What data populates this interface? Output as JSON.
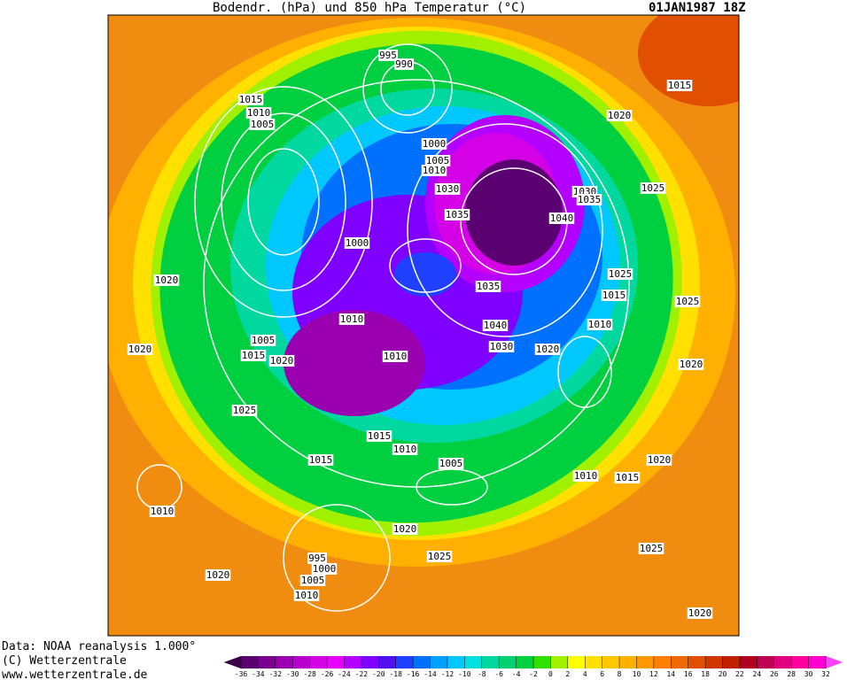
{
  "header": {
    "title": "Bodendr. (hPa) und 850 hPa Temperatur (°C)",
    "date": "01JAN1987 18Z"
  },
  "footer": [
    "Data: NOAA reanalysis 1.000°",
    "(C) Wetterzentrale",
    "www.wetterzentrale.de"
  ],
  "isobar_labels": [
    "1015",
    "1010",
    "1005",
    "995",
    "990",
    "1015",
    "1020",
    "1000",
    "1005",
    "1010",
    "1030",
    "1035",
    "1030",
    "1035",
    "1040",
    "1025",
    "1000",
    "1020",
    "1025",
    "1015",
    "1035",
    "1025",
    "1010",
    "1040",
    "1030",
    "1020",
    "1010",
    "1020",
    "1005",
    "1015",
    "1020",
    "1010",
    "1020",
    "1025",
    "1015",
    "1010",
    "1015",
    "1005",
    "1020",
    "1010",
    "1015",
    "1010",
    "1020",
    "1025",
    "1025",
    "995",
    "1000",
    "1005",
    "1010",
    "1020",
    "1020"
  ],
  "colorbar": {
    "ticks": [
      -36,
      -34,
      -32,
      -30,
      -28,
      -26,
      -24,
      -22,
      -20,
      -18,
      -16,
      -14,
      -12,
      -10,
      -8,
      -6,
      -4,
      -2,
      0,
      2,
      4,
      6,
      8,
      10,
      12,
      14,
      16,
      18,
      20,
      22,
      24,
      26,
      28,
      30,
      32
    ],
    "colors": [
      "#3a0048",
      "#5a0070",
      "#7a0090",
      "#9a00b0",
      "#b800cc",
      "#d400e6",
      "#e800ff",
      "#b400ff",
      "#8000ff",
      "#5010f0",
      "#2040ff",
      "#0070ff",
      "#00a0ff",
      "#00c8ff",
      "#00e0e0",
      "#00d8a0",
      "#00d070",
      "#00d040",
      "#30e000",
      "#a0f000",
      "#ffff00",
      "#ffe000",
      "#ffc800",
      "#ffb000",
      "#ff9800",
      "#ff8000",
      "#f06800",
      "#e05000",
      "#d03800",
      "#c02000",
      "#b00020",
      "#c00050",
      "#e00080",
      "#ff00a0",
      "#ff00d0",
      "#ff40ff"
    ]
  }
}
